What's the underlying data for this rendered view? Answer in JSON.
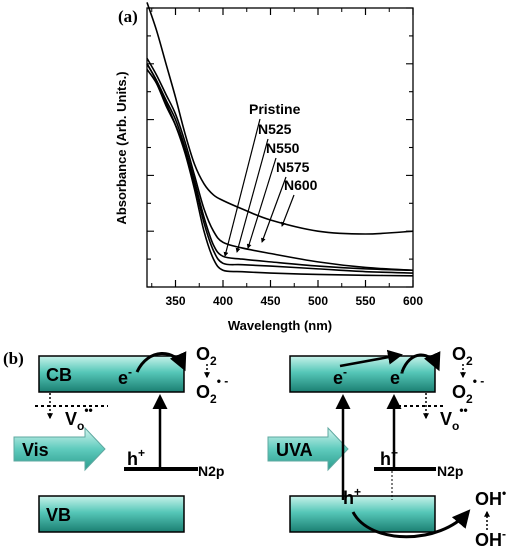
{
  "panel_a_label": "(a)",
  "panel_b_label": "(b)",
  "chart_data": {
    "type": "line",
    "title": "",
    "xlabel": "Wavelength (nm)",
    "ylabel": "Absorbance (Arb. Units.)",
    "xlim": [
      320,
      600
    ],
    "ylim": [
      0,
      1
    ],
    "x_ticks": [
      350,
      400,
      450,
      500,
      550,
      600
    ],
    "y_tick_labels_shown": false,
    "grid": false,
    "legend": "curve labels with leader arrows",
    "x": [
      320,
      330,
      340,
      350,
      360,
      370,
      380,
      390,
      400,
      420,
      450,
      500,
      550,
      600
    ],
    "series": [
      {
        "name": "Pristine",
        "values": [
          0.8,
          0.74,
          0.66,
          0.58,
          0.48,
          0.35,
          0.2,
          0.1,
          0.06,
          0.055,
          0.05,
          0.045,
          0.042,
          0.04
        ]
      },
      {
        "name": "N525",
        "values": [
          0.78,
          0.73,
          0.65,
          0.58,
          0.49,
          0.37,
          0.23,
          0.13,
          0.085,
          0.08,
          0.075,
          0.065,
          0.055,
          0.05
        ]
      },
      {
        "name": "N550",
        "values": [
          0.8,
          0.74,
          0.67,
          0.6,
          0.5,
          0.38,
          0.25,
          0.15,
          0.11,
          0.1,
          0.09,
          0.075,
          0.065,
          0.06
        ]
      },
      {
        "name": "N575",
        "values": [
          0.82,
          0.76,
          0.69,
          0.62,
          0.52,
          0.4,
          0.28,
          0.2,
          0.16,
          0.14,
          0.12,
          0.09,
          0.07,
          0.06
        ]
      },
      {
        "name": "N600",
        "values": [
          1.02,
          0.92,
          0.8,
          0.68,
          0.55,
          0.44,
          0.37,
          0.33,
          0.31,
          0.28,
          0.24,
          0.2,
          0.19,
          0.2
        ]
      }
    ]
  },
  "diagram": {
    "cb_label": "CB",
    "vb_label": "VB",
    "electron": "e",
    "electron_sup": "-",
    "hole": "h",
    "hole_sup": "+",
    "n2p": "N2p",
    "vis_label": "Vis",
    "uva_label": "UVA",
    "o2": "O",
    "o2_sub": "2",
    "vo": "V",
    "vo_sub": "o",
    "vo_sup": "••",
    "superoxide_sup": "• -",
    "oh": "OH",
    "oh_radical_sup": "•",
    "oh_ion_sup": "-"
  },
  "colors": {
    "band_light": "#c7f2ea",
    "band_mid": "#56c7b8",
    "band_dark": "#1a7f72",
    "ink": "#000000"
  }
}
